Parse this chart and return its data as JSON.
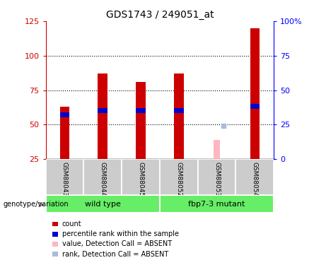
{
  "title": "GDS1743 / 249051_at",
  "samples": [
    "GSM88043",
    "GSM88044",
    "GSM88045",
    "GSM88052",
    "GSM88053",
    "GSM88054"
  ],
  "red_values": [
    63,
    87,
    81,
    87,
    null,
    120
  ],
  "blue_values": [
    57,
    60,
    60,
    60,
    null,
    63
  ],
  "pink_value": 39,
  "pink_rank": 49,
  "pink_sample_idx": 4,
  "ylim_left": [
    25,
    125
  ],
  "ylim_right": [
    0,
    100
  ],
  "yticks_left": [
    25,
    50,
    75,
    100,
    125
  ],
  "yticks_right": [
    0,
    25,
    50,
    75,
    100
  ],
  "bar_width": 0.25,
  "red_color": "#CC0000",
  "blue_color": "#0000CC",
  "pink_color": "#FFB6C1",
  "lavender_color": "#AABBDD",
  "sample_bg_color": "#CCCCCC",
  "group_bg_color": "#66EE66",
  "legend_items": [
    {
      "label": "count",
      "color": "#CC0000"
    },
    {
      "label": "percentile rank within the sample",
      "color": "#0000CC"
    },
    {
      "label": "value, Detection Call = ABSENT",
      "color": "#FFB6C1"
    },
    {
      "label": "rank, Detection Call = ABSENT",
      "color": "#AABBDD"
    }
  ],
  "group_ranges": [
    [
      0,
      2,
      "wild type"
    ],
    [
      3,
      5,
      "fbp7-3 mutant"
    ]
  ],
  "genotype_label": "genotype/variation"
}
